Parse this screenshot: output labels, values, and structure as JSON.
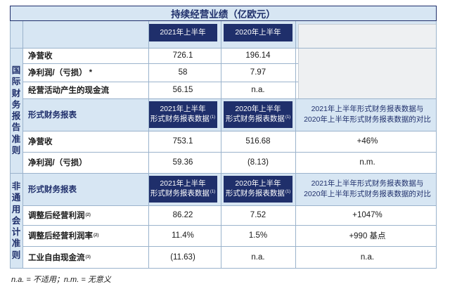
{
  "title": "持续经营业绩（亿欧元）",
  "col_headers": {
    "y2021": "2021年上半年",
    "y2020": "2020年上半年"
  },
  "side_labels": {
    "ifrs": [
      "国",
      "际",
      "财",
      "务",
      "报",
      "告",
      "准",
      "则"
    ],
    "non_gaap": [
      "非",
      "通",
      "用",
      "会",
      "计",
      "准",
      "则"
    ]
  },
  "ifrs_rows": [
    {
      "label": "净营收",
      "v2021": "726.1",
      "v2020": "196.14"
    },
    {
      "label": "净利润/（亏损）",
      "star": "*",
      "v2021": "58",
      "v2020": "7.97"
    },
    {
      "label": "经营活动产生的现金流",
      "v2021": "56.15",
      "v2020": "n.a."
    }
  ],
  "proforma": {
    "label": "形式财务报表",
    "h2021_l1": "2021年上半年",
    "h2021_l2": "形式财务报表数据",
    "h2020_l1": "2020年上半年",
    "h2020_l2": "形式财务报表数据",
    "sup": "(1)",
    "cmp_l1": "2021年上半年形式财务报表数据与",
    "cmp_l2": "2020年上半年形式财务报表数据的对比",
    "rows": [
      {
        "label": "净营收",
        "v2021": "753.1",
        "v2020": "516.68",
        "cmp": "+46%"
      },
      {
        "label": "净利润/（亏损）",
        "v2021": "59.36",
        "v2020": "(8.13)",
        "cmp": "n.m."
      }
    ]
  },
  "non_gaap": {
    "label": "形式财务报表",
    "h2021_l1": "2021年上半年",
    "h2021_l2": "形式财务报表数据",
    "h2020_l1": "2020年上半年",
    "h2020_l2": "形式财务报表数据",
    "sup": "(1)",
    "cmp_l1": "2021年上半年形式财务报表数据与",
    "cmp_l2": "2020年上半年形式财务报表数据的对比",
    "rows": [
      {
        "label": "调整后经营利润",
        "sup": "(2)",
        "v2021": "86.22",
        "v2020": "7.52",
        "cmp": "+1047%"
      },
      {
        "label": "调整后经营利润率",
        "sup": "(2)",
        "v2021": "11.4%",
        "v2020": "1.5%",
        "cmp": "+990 基点"
      },
      {
        "label": "工业自由现金流",
        "sup": "(3)",
        "v2021": "(11.63)",
        "v2020": "n.a.",
        "cmp": "n.a."
      }
    ]
  },
  "footnote": "n.a. = 不适用；n.m. = 无意义"
}
